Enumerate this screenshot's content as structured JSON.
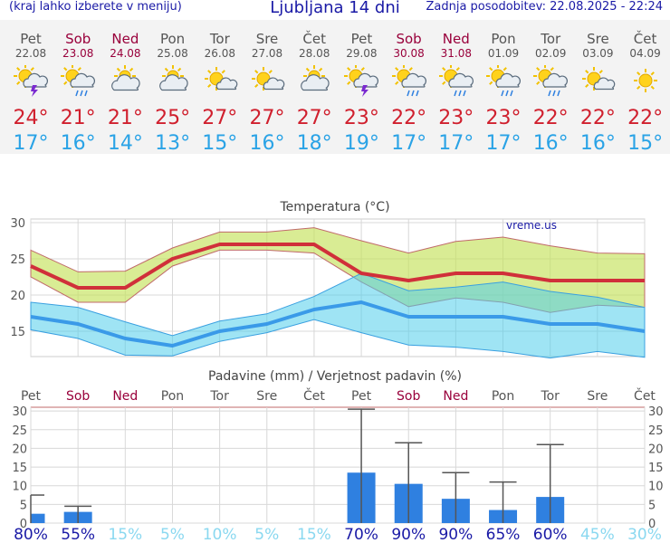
{
  "header": {
    "left": "(kraj lahko izberete v meniju)",
    "title": "Ljubljana 14 dni",
    "right": "Zadnja posodobitev: 22.08.2025 - 22:24"
  },
  "days": [
    {
      "name": "Pet",
      "date": "22.08",
      "weekend": false,
      "icon": "sun-cloud-thunder-icon",
      "tmax": "24°",
      "tmin": "17°"
    },
    {
      "name": "Sob",
      "date": "23.08",
      "weekend": true,
      "icon": "sun-cloud-rain-icon",
      "tmax": "21°",
      "tmin": "16°"
    },
    {
      "name": "Ned",
      "date": "24.08",
      "weekend": true,
      "icon": "sun-cloud-icon",
      "tmax": "21°",
      "tmin": "14°"
    },
    {
      "name": "Pon",
      "date": "25.08",
      "weekend": false,
      "icon": "sun-cloud-icon",
      "tmax": "25°",
      "tmin": "13°"
    },
    {
      "name": "Tor",
      "date": "26.08",
      "weekend": false,
      "icon": "sun-small-cloud-icon",
      "tmax": "27°",
      "tmin": "15°"
    },
    {
      "name": "Sre",
      "date": "27.08",
      "weekend": false,
      "icon": "sun-small-cloud-icon",
      "tmax": "27°",
      "tmin": "16°"
    },
    {
      "name": "Čet",
      "date": "28.08",
      "weekend": false,
      "icon": "sun-cloud-icon",
      "tmax": "27°",
      "tmin": "18°"
    },
    {
      "name": "Pet",
      "date": "29.08",
      "weekend": false,
      "icon": "sun-cloud-thunder-icon",
      "tmax": "23°",
      "tmin": "19°"
    },
    {
      "name": "Sob",
      "date": "30.08",
      "weekend": true,
      "icon": "sun-cloud-rain-icon",
      "tmax": "22°",
      "tmin": "17°"
    },
    {
      "name": "Ned",
      "date": "31.08",
      "weekend": true,
      "icon": "sun-cloud-rain-icon",
      "tmax": "23°",
      "tmin": "17°"
    },
    {
      "name": "Pon",
      "date": "01.09",
      "weekend": false,
      "icon": "sun-cloud-rain-icon",
      "tmax": "23°",
      "tmin": "17°"
    },
    {
      "name": "Tor",
      "date": "02.09",
      "weekend": false,
      "icon": "sun-cloud-rain-icon",
      "tmax": "22°",
      "tmin": "16°"
    },
    {
      "name": "Sre",
      "date": "03.09",
      "weekend": false,
      "icon": "sun-small-cloud-icon",
      "tmax": "22°",
      "tmin": "16°"
    },
    {
      "name": "Čet",
      "date": "04.09",
      "weekend": false,
      "icon": "sun-icon",
      "tmax": "22°",
      "tmin": "15°"
    }
  ],
  "colors": {
    "weekend": "#99003b",
    "tmax": "#d0202e",
    "tmin": "#2aa3e6",
    "bar": "#2f80e0",
    "title": "#1a1aa6"
  },
  "chart_data": [
    {
      "type": "line",
      "title": "Temperatura (°C)",
      "watermark": "vreme.us",
      "ylim": [
        11.5,
        30.5
      ],
      "yticks": [
        15,
        20,
        25,
        30
      ],
      "x": [
        1,
        2,
        3,
        4,
        5,
        6,
        7,
        8,
        9,
        10,
        11,
        12,
        13,
        14
      ],
      "series": [
        {
          "name": "Tmax",
          "values": [
            24,
            21,
            21,
            25,
            27,
            27,
            27,
            23,
            22,
            23,
            23,
            22,
            22,
            22
          ]
        },
        {
          "name": "Tmax_high",
          "values": [
            26.2,
            23.2,
            23.3,
            26.5,
            28.7,
            28.7,
            29.3,
            27.5,
            25.8,
            27.4,
            28,
            26.8,
            25.8,
            25.7
          ]
        },
        {
          "name": "Tmax_low",
          "values": [
            22.5,
            19,
            19,
            24,
            26.2,
            26.2,
            25.8,
            21.8,
            18.4,
            19.6,
            19,
            17.6,
            18.6,
            18.3
          ]
        },
        {
          "name": "Tmin",
          "values": [
            17,
            16,
            14,
            13,
            15,
            16,
            18,
            19,
            17,
            17,
            17,
            16,
            16,
            15
          ]
        },
        {
          "name": "Tmin_high",
          "values": [
            19,
            18.3,
            16.3,
            14.4,
            16.4,
            17.4,
            19.8,
            23,
            20.6,
            21.1,
            21.8,
            20.5,
            19.7,
            18.3
          ]
        },
        {
          "name": "Tmin_low",
          "values": [
            15.2,
            14,
            11.7,
            11.6,
            13.6,
            14.8,
            16.6,
            14.8,
            13.1,
            12.8,
            12.2,
            11.3,
            12.2,
            11.4
          ]
        }
      ]
    },
    {
      "type": "bar",
      "title": "Padavine (mm) / Verjetnost padavin (%)",
      "ylim": [
        0,
        31
      ],
      "yticks": [
        0,
        5,
        10,
        15,
        20,
        25,
        30
      ],
      "categories": [
        "Pet",
        "Sob",
        "Ned",
        "Pon",
        "Tor",
        "Sre",
        "Čet",
        "Pet",
        "Sob",
        "Ned",
        "Pon",
        "Tor",
        "Sre",
        "Čet"
      ],
      "weekend": [
        false,
        true,
        true,
        false,
        false,
        false,
        false,
        false,
        true,
        true,
        false,
        false,
        false,
        false
      ],
      "values": [
        2.5,
        3,
        0,
        0,
        0,
        0,
        0,
        13.5,
        10.5,
        6.5,
        3.5,
        7,
        0,
        0
      ],
      "error_high": [
        7.5,
        4.5,
        0,
        0,
        0,
        0,
        0,
        30.5,
        21.5,
        13.5,
        11,
        21,
        0,
        0
      ],
      "probability": [
        "80%",
        "55%",
        "15%",
        "5%",
        "10%",
        "5%",
        "15%",
        "70%",
        "90%",
        "90%",
        "65%",
        "60%",
        "45%",
        "30%"
      ],
      "probability_colors": [
        "#1a1aa6",
        "#1a1aa6",
        "#8ad8f0",
        "#8ad8f0",
        "#8ad8f0",
        "#8ad8f0",
        "#8ad8f0",
        "#1a1aa6",
        "#1a1aa6",
        "#1a1aa6",
        "#1a1aa6",
        "#1a1aa6",
        "#8ad8f0",
        "#8ad8f0"
      ]
    }
  ]
}
